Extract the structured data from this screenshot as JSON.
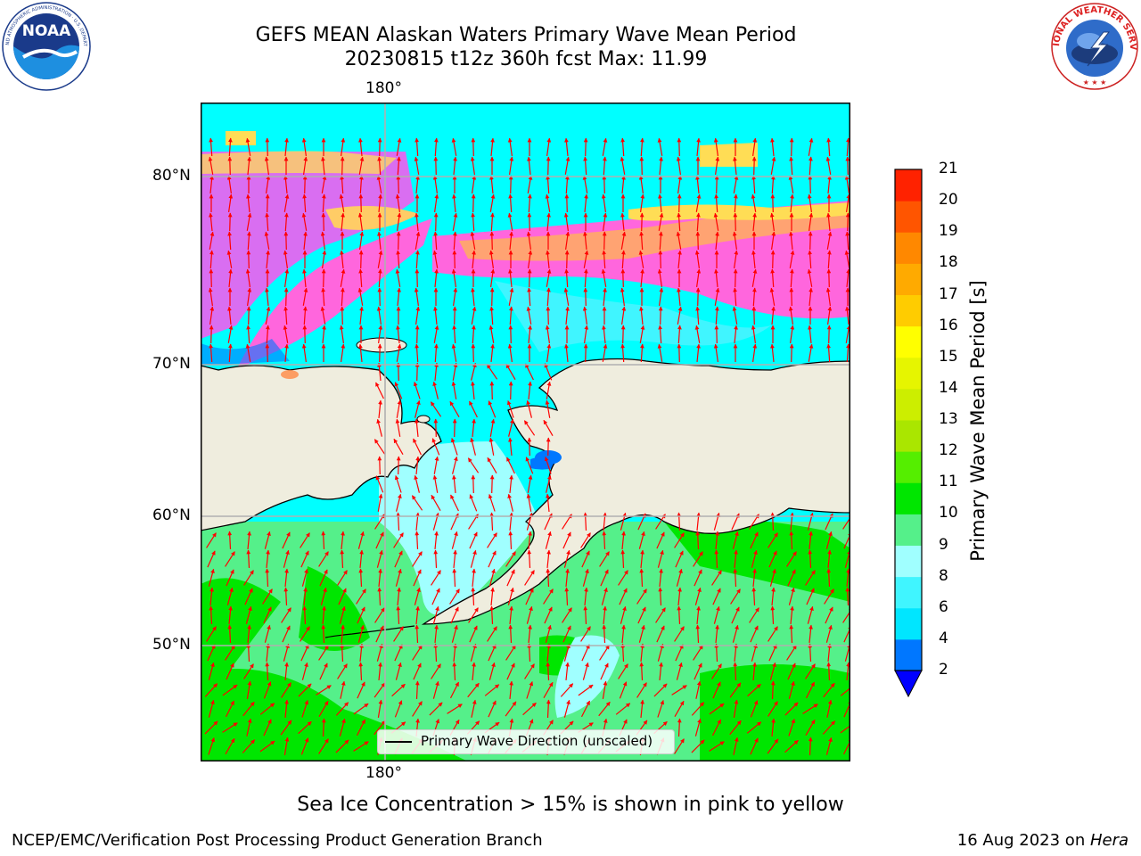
{
  "header": {
    "title_line1": "GEFS MEAN Alaskan Waters Primary Wave Mean Period",
    "title_line2": "20230815 t12z 360h fcst   Max: 11.99"
  },
  "logos": {
    "left": "NOAA",
    "left_ring": "NATIONAL OCEANIC AND ATMOSPHERIC ADMINISTRATION · U.S. DEPARTMENT OF COMMERCE",
    "right_ring": "NATIONAL WEATHER SERVICE"
  },
  "map": {
    "top_lon_label": "180°",
    "bottom_lon_label": "180°",
    "lat_labels": [
      "80°N",
      "70°N",
      "60°N",
      "50°N"
    ],
    "legend_label": "Primary Wave Direction (unscaled)",
    "land_color": "#efedde",
    "coast_color": "#000000",
    "arrow_color": "#ff0000",
    "grid_color": "#b0b0b0"
  },
  "colorbar": {
    "title": "Primary Wave Mean Period [s]",
    "levels": [
      "2",
      "4",
      "6",
      "8",
      "9",
      "10",
      "11",
      "12",
      "13",
      "14",
      "15",
      "16",
      "17",
      "18",
      "19",
      "20",
      "21"
    ],
    "colors": [
      "#0077ff",
      "#00e6ff",
      "#40f5ff",
      "#a0ffff",
      "#55f08a",
      "#00e600",
      "#55ee00",
      "#aae600",
      "#ccee00",
      "#e6f500",
      "#ffff00",
      "#ffcc00",
      "#ffaa00",
      "#ff8800",
      "#ff5500",
      "#ff2200"
    ],
    "under_color": "#0000ff"
  },
  "footer": {
    "ice_note": "Sea Ice Concentration > 15% is shown in pink to yellow",
    "left": "NCEP/EMC/Verification Post Processing Product Generation Branch",
    "right_date": "16 Aug 2023 on ",
    "right_host": "Hera"
  }
}
